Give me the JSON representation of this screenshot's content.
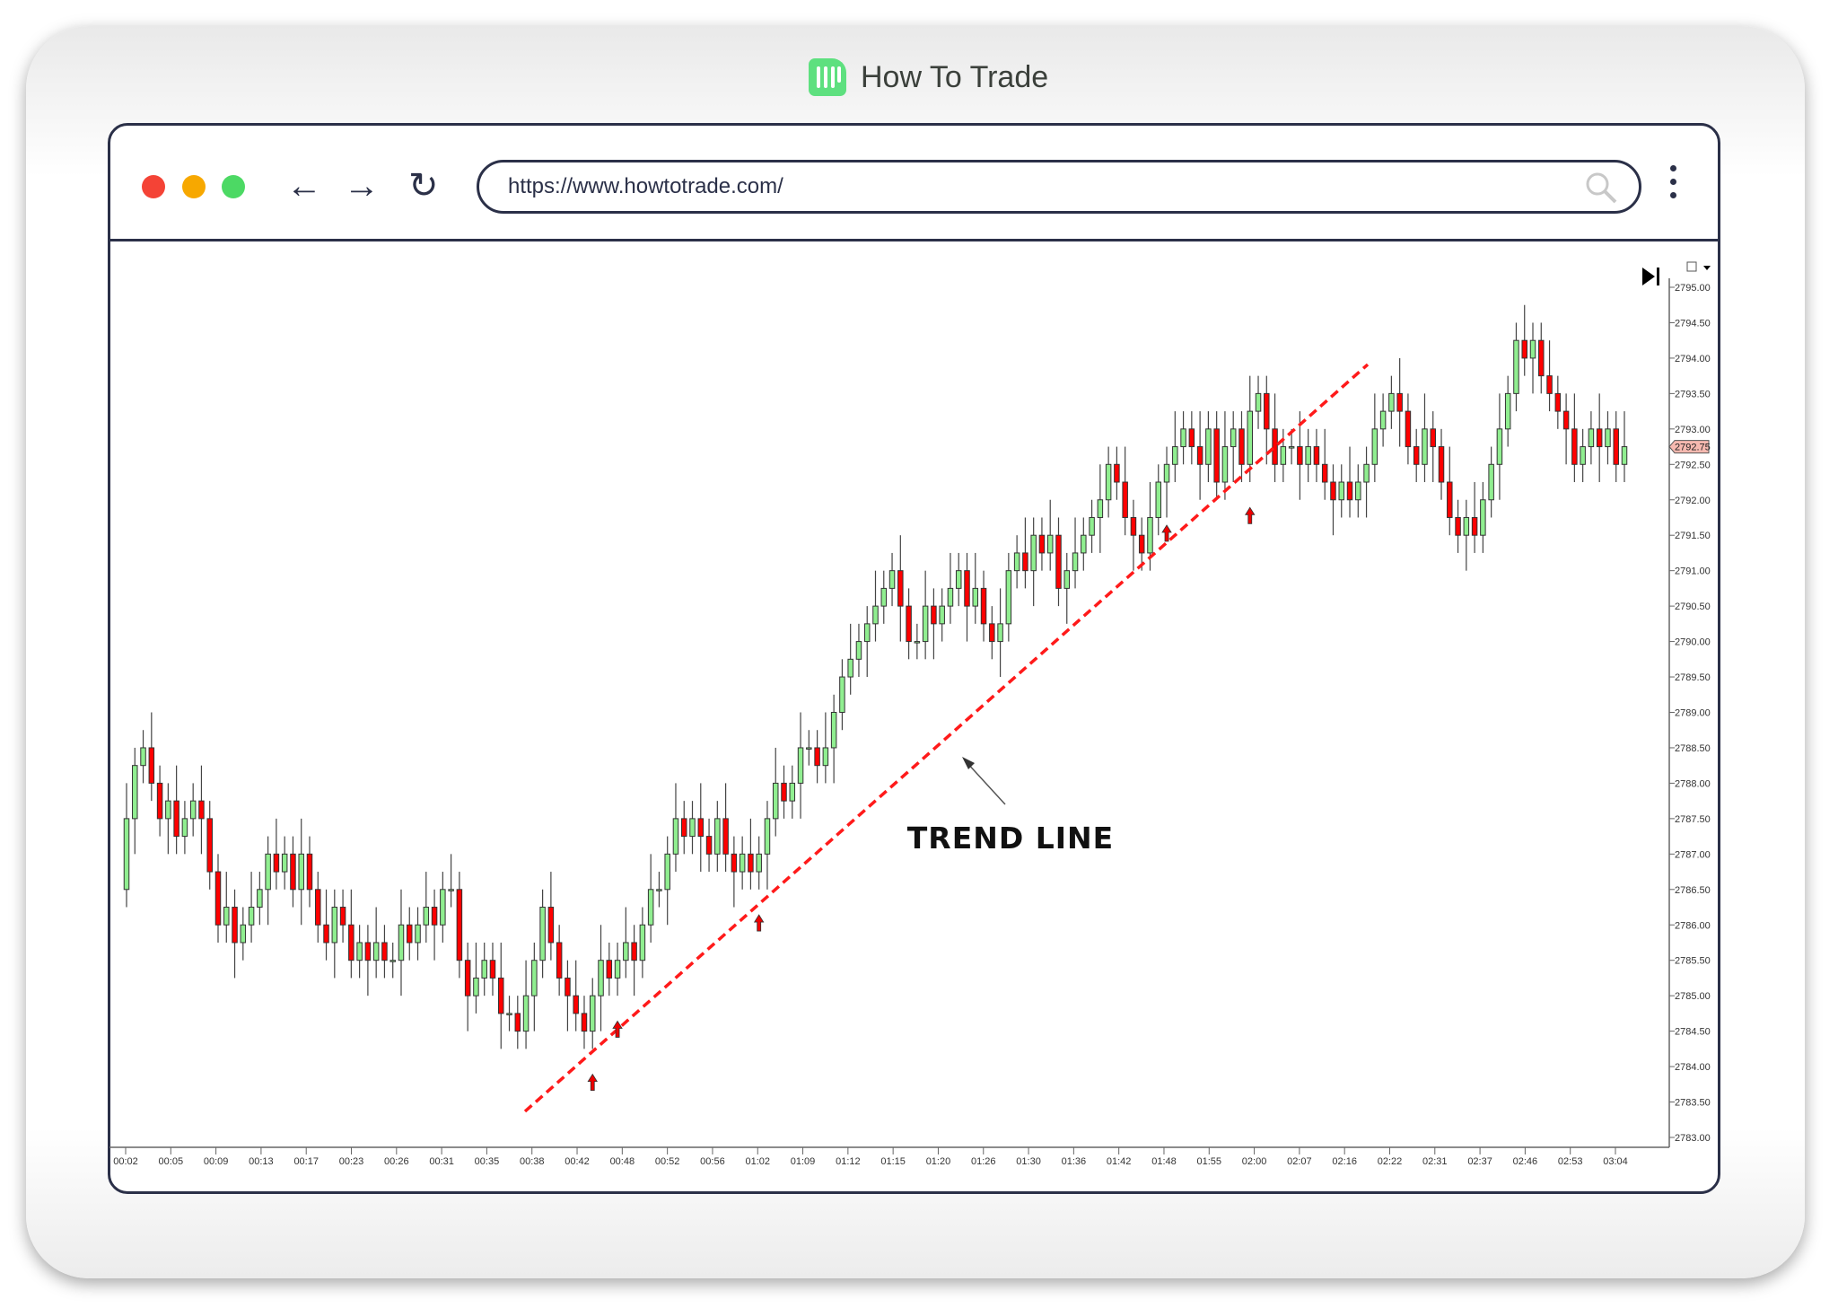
{
  "brand": {
    "name": "How To Trade",
    "accent": "#5ee07f"
  },
  "browser": {
    "url": "https://www.howtotrade.com/",
    "traffic_colors": [
      "#f44336",
      "#f7a800",
      "#4cd964"
    ]
  },
  "chart_data": {
    "type": "candlestick",
    "annotation": "TREND LINE",
    "current_price_label": "2792.75",
    "y_ticks": [
      "2795.00",
      "2794.50",
      "2794.00",
      "2793.50",
      "2793.00",
      "2792.50",
      "2792.00",
      "2791.50",
      "2791.00",
      "2790.50",
      "2790.00",
      "2789.50",
      "2789.00",
      "2788.50",
      "2788.00",
      "2787.50",
      "2787.00",
      "2786.50",
      "2786.00",
      "2785.50",
      "2785.00",
      "2784.50",
      "2784.00",
      "2783.50",
      "2783.00"
    ],
    "ylim": [
      2783,
      2795
    ],
    "x_ticks": [
      "00:02",
      "00:05",
      "00:09",
      "00:13",
      "00:17",
      "00:23",
      "00:26",
      "00:31",
      "00:35",
      "00:38",
      "00:42",
      "00:48",
      "00:52",
      "00:56",
      "01:02",
      "01:09",
      "01:12",
      "01:15",
      "01:20",
      "01:26",
      "01:30",
      "01:36",
      "01:42",
      "01:48",
      "01:55",
      "02:00",
      "02:07",
      "02:16",
      "02:22",
      "02:31",
      "02:37",
      "02:46",
      "02:53",
      "03:04"
    ],
    "up_color": "#90ee90",
    "down_color": "#ff0000",
    "trendline_color": "#ff1a1a",
    "trend_line": {
      "from": {
        "bar": 0,
        "price": 2783.25
      },
      "to": {
        "bar": 0,
        "price": 2794
      }
    },
    "closes": [
      2787.5,
      2788.25,
      2788.5,
      2788,
      2787.5,
      2787.75,
      2787.25,
      2787.5,
      2787.75,
      2787.5,
      2786.75,
      2786,
      2786.25,
      2785.75,
      2786,
      2786.25,
      2786.5,
      2787,
      2786.75,
      2787,
      2786.5,
      2787,
      2786.5,
      2786,
      2785.75,
      2786.25,
      2786,
      2785.5,
      2785.75,
      2785.5,
      2785.75,
      2785.5,
      2785.5,
      2786,
      2785.75,
      2786,
      2786.25,
      2786,
      2786.5,
      2786.5,
      2785.5,
      2785,
      2785.25,
      2785.5,
      2785.25,
      2784.75,
      2784.75,
      2784.5,
      2785,
      2785.5,
      2786.25,
      2785.75,
      2785.25,
      2785,
      2784.75,
      2784.5,
      2785,
      2785.5,
      2785.25,
      2785.5,
      2785.75,
      2785.5,
      2786,
      2786.5,
      2786.5,
      2787,
      2787.5,
      2787.25,
      2787.5,
      2787.25,
      2787,
      2787.5,
      2787,
      2786.75,
      2787,
      2786.75,
      2787,
      2787.5,
      2788,
      2787.75,
      2788,
      2788.5,
      2788.5,
      2788.25,
      2788.5,
      2789,
      2789.5,
      2789.75,
      2790,
      2790.25,
      2790.5,
      2790.75,
      2791,
      2790.5,
      2790,
      2790,
      2790.5,
      2790.25,
      2790.5,
      2790.75,
      2791,
      2790.5,
      2790.75,
      2790.25,
      2790,
      2790.25,
      2791,
      2791.25,
      2791,
      2791.5,
      2791.25,
      2791.5,
      2790.75,
      2791,
      2791.25,
      2791.5,
      2791.75,
      2792,
      2792.5,
      2792.25,
      2791.75,
      2791.5,
      2791.25,
      2791.75,
      2792.25,
      2792.5,
      2792.75,
      2793,
      2792.75,
      2792.5,
      2793,
      2792.25,
      2792.75,
      2793,
      2792.5,
      2793.25,
      2793.5,
      2793,
      2792.5,
      2792.75,
      2792.75,
      2792.5,
      2792.75,
      2792.5,
      2792.25,
      2792,
      2792.25,
      2792,
      2792.25,
      2792.5,
      2793,
      2793.25,
      2793.5,
      2793.25,
      2792.75,
      2792.5,
      2793,
      2792.75,
      2792.25,
      2791.75,
      2791.5,
      2791.75,
      2791.5,
      2792,
      2792.5,
      2793,
      2793.5,
      2794.25,
      2794,
      2794.25,
      2793.75,
      2793.5,
      2793.25,
      2793,
      2792.5,
      2792.75,
      2793,
      2792.75,
      2793,
      2792.5,
      2792.75
    ],
    "support_arrow_bars": [
      56,
      59,
      76,
      125,
      135
    ],
    "grid": false
  }
}
